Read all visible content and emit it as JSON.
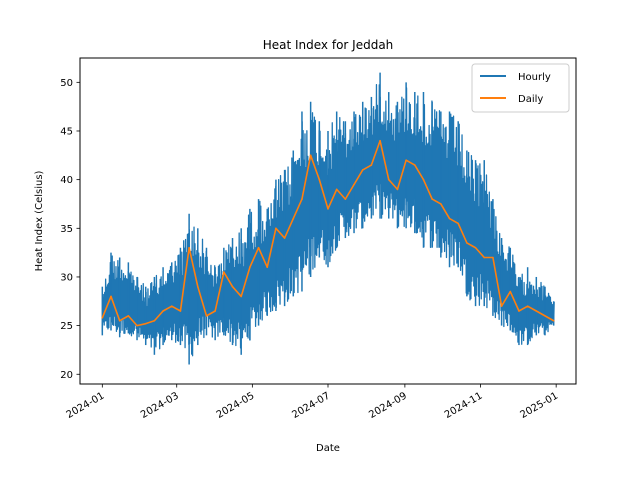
{
  "chart_data": {
    "type": "line",
    "title": "Heat Index for Jeddah",
    "xlabel": "Date",
    "ylabel": "Heat Index (Celsius)",
    "x_axis_kind": "date",
    "xlim": [
      "2023-12-14",
      "2025-01-17"
    ],
    "ylim": [
      19.0,
      52.5
    ],
    "y_ticks": [
      20,
      25,
      30,
      35,
      40,
      45,
      50
    ],
    "x_ticks": [
      "2024-01",
      "2024-03",
      "2024-05",
      "2024-07",
      "2024-09",
      "2024-11",
      "2025-01"
    ],
    "x_tick_rotation_deg": 30,
    "grid": false,
    "legend": {
      "placement": "top-right",
      "entries": [
        "Hourly",
        "Daily"
      ]
    },
    "colors": {
      "Hourly": "#1f77b4",
      "Daily": "#ff7f0e"
    },
    "series": [
      {
        "name": "Hourly",
        "kind": "min-max-envelope",
        "note_dates": "weekly samples; low/high are the daily extremes of the hourly trace",
        "x": [
          "2024-01-01",
          "2024-01-08",
          "2024-01-15",
          "2024-01-22",
          "2024-01-29",
          "2024-02-05",
          "2024-02-12",
          "2024-02-19",
          "2024-02-26",
          "2024-03-04",
          "2024-03-11",
          "2024-03-18",
          "2024-03-25",
          "2024-04-01",
          "2024-04-08",
          "2024-04-15",
          "2024-04-22",
          "2024-04-29",
          "2024-05-06",
          "2024-05-13",
          "2024-05-20",
          "2024-05-27",
          "2024-06-03",
          "2024-06-10",
          "2024-06-17",
          "2024-06-24",
          "2024-07-01",
          "2024-07-08",
          "2024-07-15",
          "2024-07-22",
          "2024-07-29",
          "2024-08-05",
          "2024-08-12",
          "2024-08-19",
          "2024-08-26",
          "2024-09-02",
          "2024-09-09",
          "2024-09-16",
          "2024-09-23",
          "2024-09-30",
          "2024-10-07",
          "2024-10-14",
          "2024-10-21",
          "2024-10-28",
          "2024-11-04",
          "2024-11-11",
          "2024-11-18",
          "2024-11-25",
          "2024-12-02",
          "2024-12-09",
          "2024-12-16",
          "2024-12-23",
          "2024-12-30"
        ],
        "low": [
          24.0,
          24.5,
          23.8,
          24.2,
          23.5,
          23.0,
          22.0,
          23.0,
          23.5,
          23.0,
          21.0,
          23.0,
          24.0,
          23.5,
          24.0,
          23.0,
          22.0,
          23.5,
          25.0,
          26.0,
          26.5,
          27.0,
          28.0,
          28.5,
          30.0,
          32.0,
          31.0,
          33.0,
          34.0,
          34.5,
          35.0,
          36.0,
          36.0,
          36.0,
          35.0,
          35.0,
          34.5,
          33.0,
          33.0,
          32.0,
          31.0,
          31.0,
          28.0,
          27.0,
          27.0,
          26.0,
          25.0,
          24.5,
          23.0,
          23.0,
          24.0,
          24.0,
          25.0
        ],
        "high": [
          29.0,
          32.5,
          32.0,
          31.5,
          30.0,
          29.0,
          30.0,
          31.0,
          31.5,
          33.0,
          36.5,
          35.0,
          33.0,
          31.0,
          33.0,
          34.0,
          35.0,
          37.0,
          38.0,
          37.0,
          40.0,
          41.0,
          43.0,
          47.0,
          48.0,
          46.0,
          45.0,
          47.0,
          46.0,
          47.0,
          48.0,
          48.5,
          51.0,
          49.0,
          48.0,
          50.0,
          49.0,
          49.0,
          48.0,
          47.0,
          47.0,
          46.0,
          43.0,
          42.0,
          42.0,
          38.0,
          34.0,
          33.0,
          30.0,
          31.0,
          30.0,
          29.0,
          27.5
        ]
      },
      {
        "name": "Daily",
        "kind": "line",
        "x": [
          "2024-01-01",
          "2024-01-08",
          "2024-01-15",
          "2024-01-22",
          "2024-01-29",
          "2024-02-05",
          "2024-02-12",
          "2024-02-19",
          "2024-02-26",
          "2024-03-04",
          "2024-03-11",
          "2024-03-18",
          "2024-03-25",
          "2024-04-01",
          "2024-04-08",
          "2024-04-15",
          "2024-04-22",
          "2024-04-29",
          "2024-05-06",
          "2024-05-13",
          "2024-05-20",
          "2024-05-27",
          "2024-06-03",
          "2024-06-10",
          "2024-06-17",
          "2024-06-24",
          "2024-07-01",
          "2024-07-08",
          "2024-07-15",
          "2024-07-22",
          "2024-07-29",
          "2024-08-05",
          "2024-08-12",
          "2024-08-19",
          "2024-08-26",
          "2024-09-02",
          "2024-09-09",
          "2024-09-16",
          "2024-09-23",
          "2024-09-30",
          "2024-10-07",
          "2024-10-14",
          "2024-10-21",
          "2024-10-28",
          "2024-11-04",
          "2024-11-11",
          "2024-11-18",
          "2024-11-25",
          "2024-12-02",
          "2024-12-09",
          "2024-12-16",
          "2024-12-23",
          "2024-12-30"
        ],
        "values": [
          25.8,
          28.0,
          25.5,
          26.0,
          25.0,
          25.2,
          25.5,
          26.5,
          27.0,
          26.5,
          33.0,
          29.0,
          26.0,
          26.5,
          30.5,
          29.0,
          28.0,
          31.0,
          33.0,
          31.0,
          35.0,
          34.0,
          36.0,
          38.0,
          42.5,
          40.0,
          37.0,
          39.0,
          38.0,
          39.5,
          41.0,
          41.5,
          44.0,
          40.0,
          39.0,
          42.0,
          41.5,
          40.0,
          38.0,
          37.5,
          36.0,
          35.5,
          33.5,
          33.0,
          32.0,
          32.0,
          27.0,
          28.5,
          26.5,
          27.0,
          26.5,
          26.0,
          25.5
        ]
      }
    ]
  }
}
